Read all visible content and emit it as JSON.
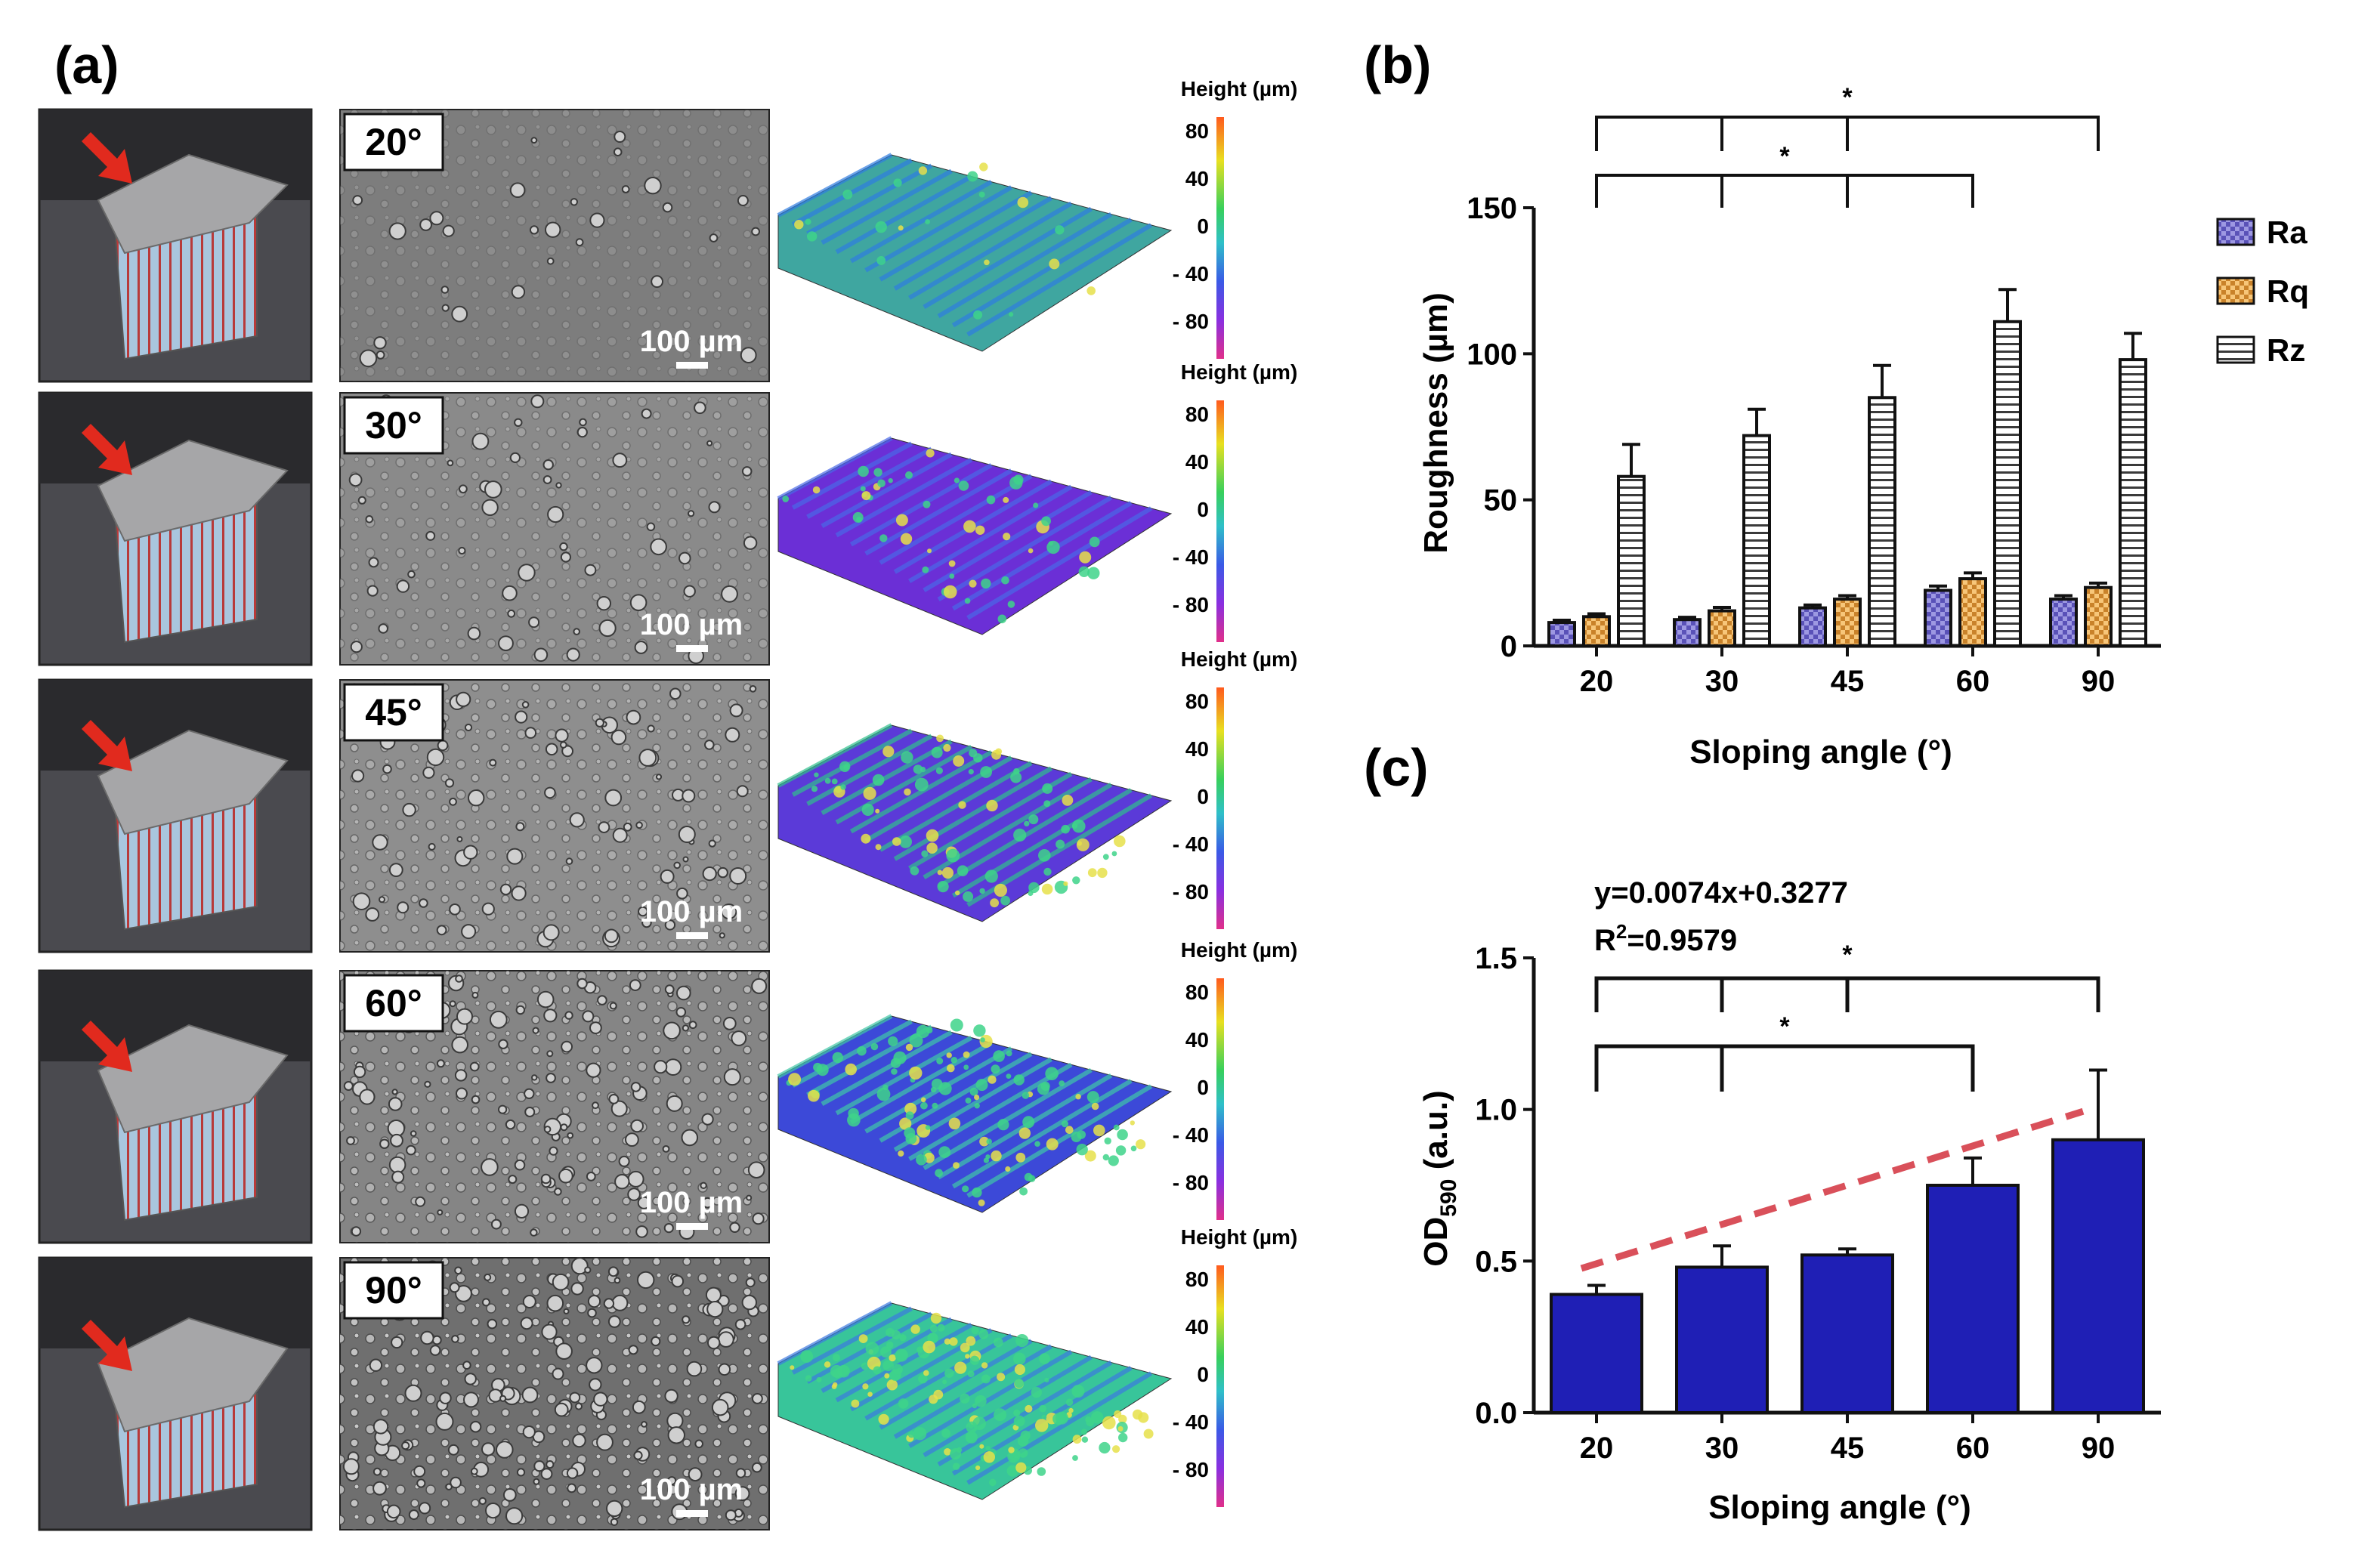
{
  "panel_labels": {
    "a": "(a)",
    "b": "(b)",
    "c": "(c)"
  },
  "panel_a": {
    "rows": [
      {
        "angle_label": "20°",
        "scale_bar": "100 µm",
        "colorbar_title": "Height (µm)",
        "sem_tone": "#7d7d7d",
        "height_base": "#3fa6a0",
        "height_accent": "#2f7de0"
      },
      {
        "angle_label": "30°",
        "scale_bar": "100 µm",
        "colorbar_title": "Height (µm)",
        "sem_tone": "#8a8a8a",
        "height_base": "#6b2fd6",
        "height_accent": "#4a68e8"
      },
      {
        "angle_label": "45°",
        "scale_bar": "100 µm",
        "colorbar_title": "Height (µm)",
        "sem_tone": "#8e8e8e",
        "height_base": "#5b3ad8",
        "height_accent": "#2fbf8e"
      },
      {
        "angle_label": "60°",
        "scale_bar": "100 µm",
        "colorbar_title": "Height (µm)",
        "sem_tone": "#858585",
        "height_base": "#3c49d8",
        "height_accent": "#3fc7a8"
      },
      {
        "angle_label": "90°",
        "scale_bar": "100 µm",
        "colorbar_title": "Height (µm)",
        "sem_tone": "#6f6f6f",
        "height_base": "#38c59a",
        "height_accent": "#3b7ae0"
      }
    ],
    "colorbar_ticks": [
      "80",
      "40",
      "0",
      "- 40",
      "- 80"
    ]
  },
  "chart_data": [
    {
      "type": "bar",
      "panel": "b",
      "title": "",
      "xlabel": "Sloping angle (°)",
      "ylabel": "Roughness (µm)",
      "categories": [
        "20",
        "30",
        "45",
        "60",
        "90"
      ],
      "ylim": [
        0,
        150
      ],
      "yticks": [
        "0",
        "50",
        "100",
        "150"
      ],
      "series": [
        {
          "name": "Ra",
          "values": [
            8,
            9,
            13,
            19,
            16
          ],
          "errors": [
            0.8,
            0.8,
            1,
            1.5,
            1.2
          ],
          "color": "#8b86d6",
          "pattern": "checker"
        },
        {
          "name": "Rq",
          "values": [
            10,
            12,
            16,
            23,
            20
          ],
          "errors": [
            1,
            1.2,
            1.2,
            2,
            1.5
          ],
          "color": "#f0b45a",
          "pattern": "checker"
        },
        {
          "name": "Rz",
          "values": [
            58,
            72,
            85,
            111,
            98
          ],
          "errors": [
            11,
            9,
            11,
            11,
            9
          ],
          "color": "#ffffff",
          "pattern": "hstripe"
        }
      ],
      "legend": [
        "Ra",
        "Rq",
        "Rz"
      ],
      "legend_position": "right",
      "significance": [
        {
          "label": "*",
          "group": "upper"
        },
        {
          "label": "*",
          "group": "lower"
        }
      ]
    },
    {
      "type": "bar",
      "panel": "c",
      "title": "",
      "xlabel": "Sloping angle (°)",
      "ylabel": "OD590 (a.u.)",
      "ylabel_main": "OD",
      "ylabel_sub": "590",
      "ylabel_unit": " (a.u.)",
      "categories": [
        "20",
        "30",
        "45",
        "60",
        "90"
      ],
      "ylim": [
        0,
        1.5
      ],
      "yticks": [
        "0.0",
        "0.5",
        "1.0",
        "1.5"
      ],
      "series": [
        {
          "name": "OD590",
          "values": [
            0.39,
            0.48,
            0.52,
            0.75,
            0.9
          ],
          "errors": [
            0.03,
            0.07,
            0.02,
            0.09,
            0.23
          ],
          "color": "#1f1fb5"
        }
      ],
      "fit": {
        "slope": 0.0074,
        "intercept": 0.3277,
        "color": "#d9505a"
      },
      "annotation_eq": "y=0.0074x+0.3277",
      "annotation_r2_main": "R",
      "annotation_r2_sup": "2",
      "annotation_r2_val": "=0.9579",
      "significance": [
        {
          "label": "*",
          "group": "upper"
        },
        {
          "label": "*",
          "group": "lower"
        }
      ]
    }
  ]
}
